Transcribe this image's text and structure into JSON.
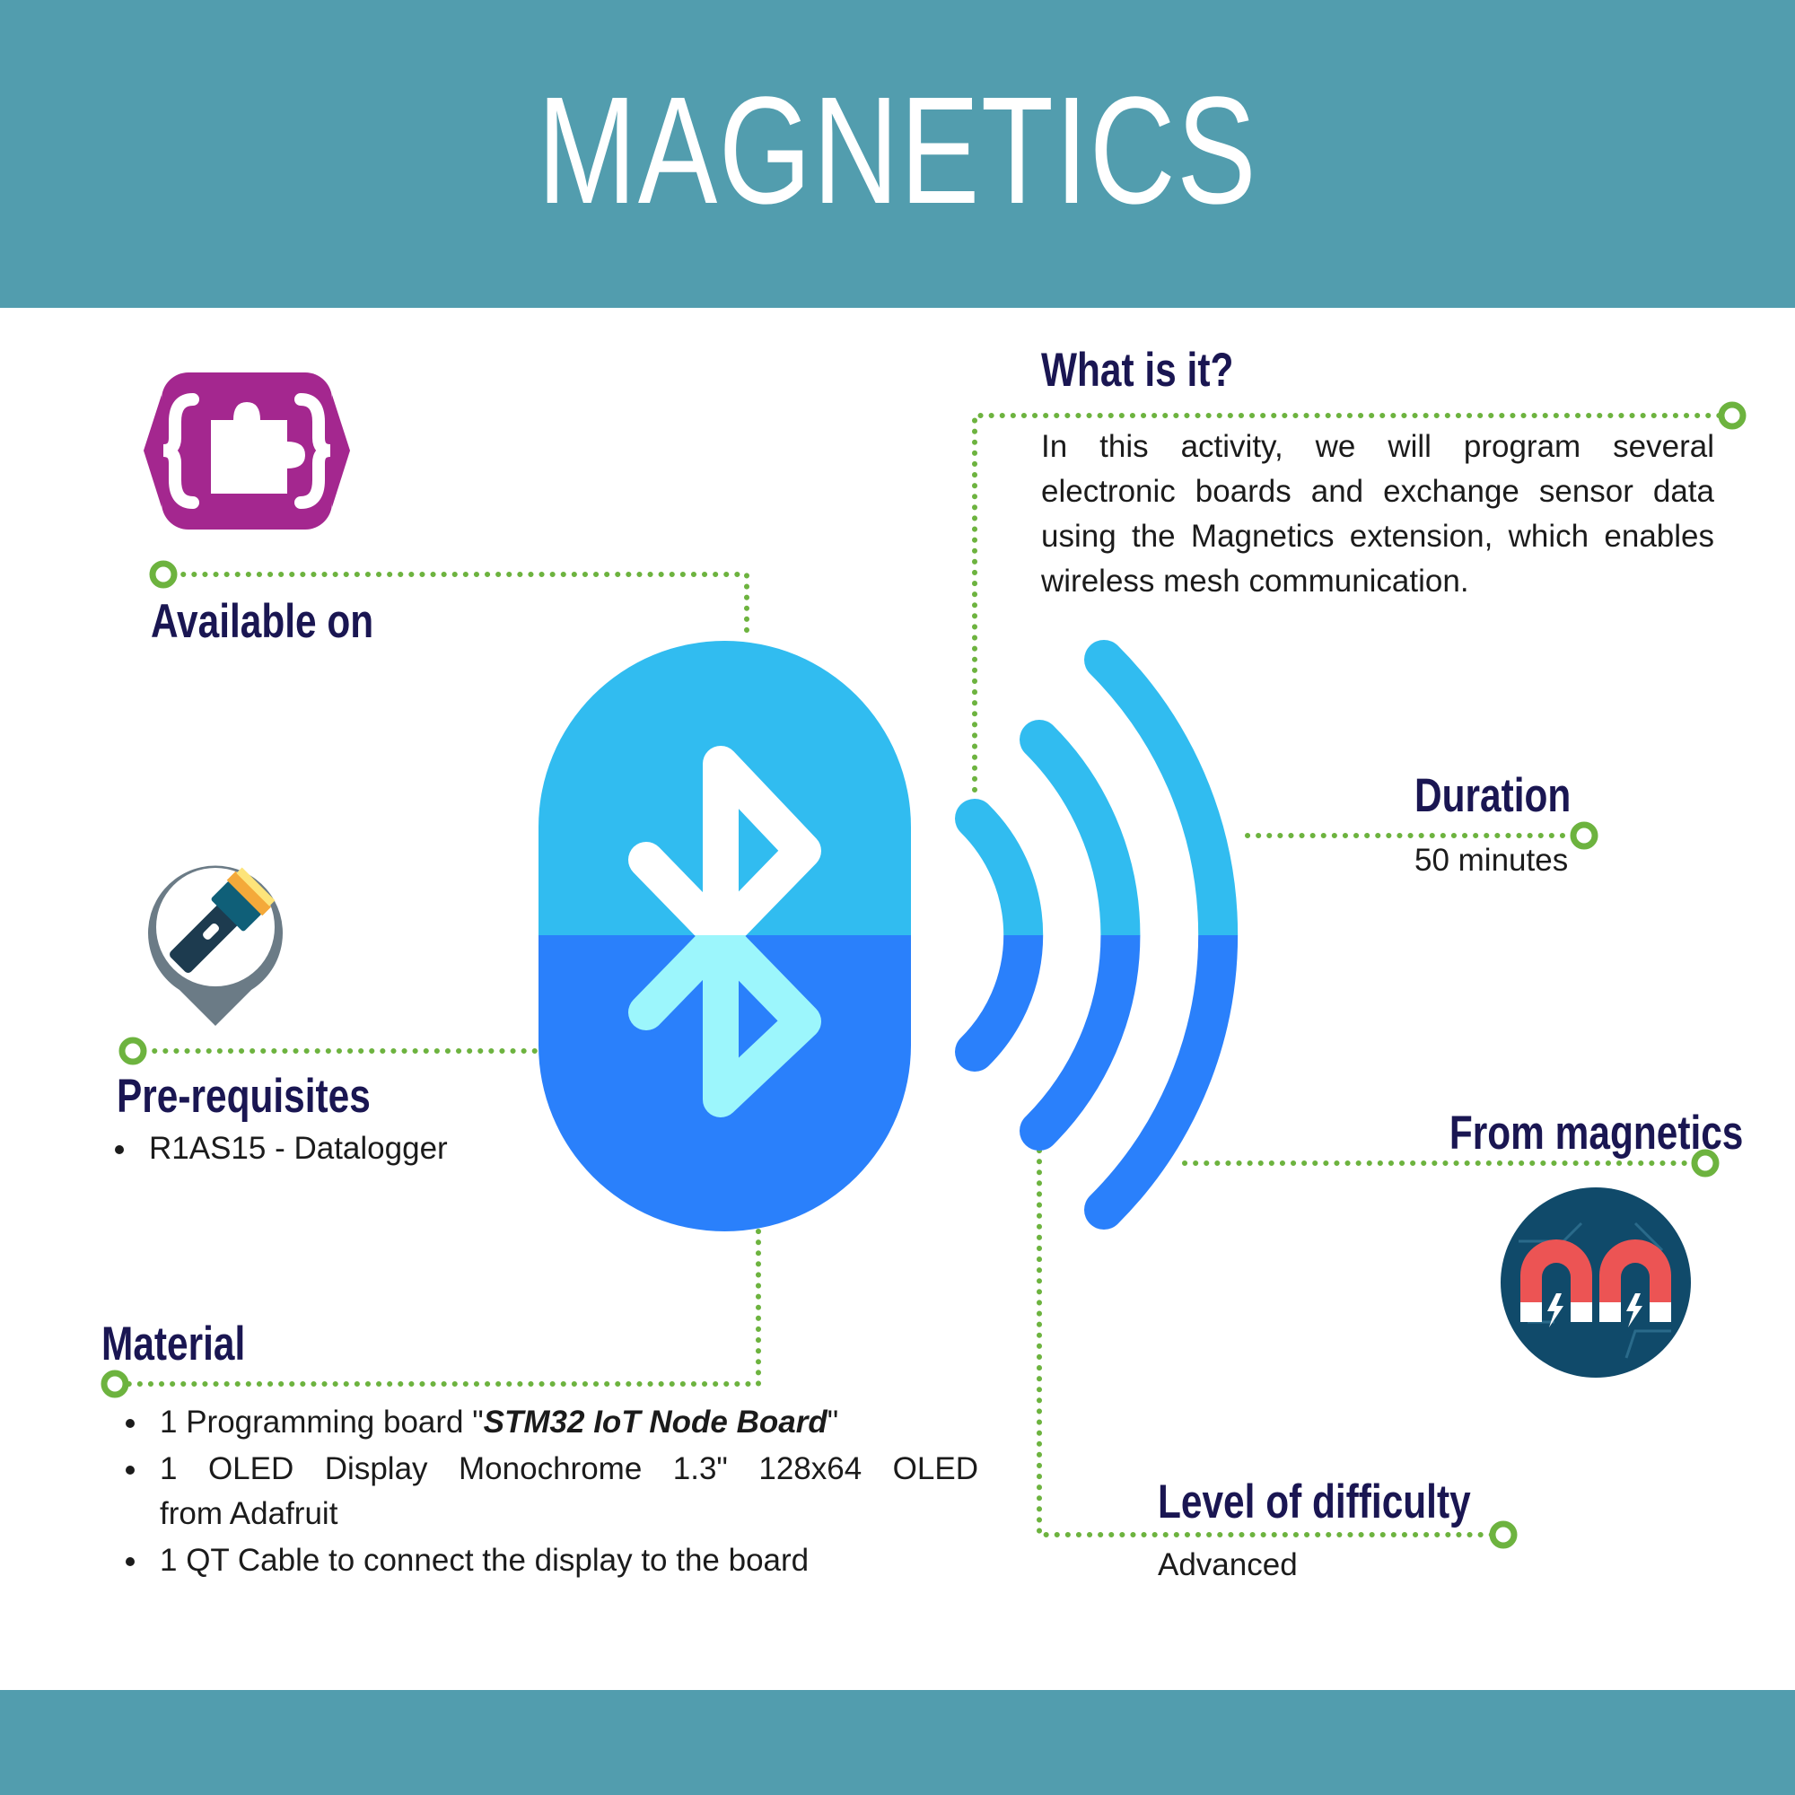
{
  "header": {
    "title": "MAGNETICS"
  },
  "what_is_it": {
    "heading": "What is it?",
    "text": "In this activity, we will program several electronic boards and exchange sensor data using the Magnetics extension, which enables wireless mesh communication."
  },
  "available_on": {
    "heading": "Available on"
  },
  "duration": {
    "heading": "Duration",
    "value": "50 minutes"
  },
  "prerequisites": {
    "heading": "Pre-requisites",
    "items": [
      "R1AS15 - Datalogger"
    ]
  },
  "from_magnetics": {
    "heading": "From magnetics"
  },
  "material": {
    "heading": "Material",
    "items": [
      {
        "before": "1 Programming board \"",
        "bold_italic": "STM32 IoT Node Board",
        "after": "\""
      },
      {
        "text": "1 OLED Display Monochrome 1.3\" 128x64 OLED",
        "text_cont": "from Adafruit"
      },
      {
        "text": "1 QT Cable to connect the display to the board"
      }
    ]
  },
  "difficulty": {
    "heading": "Level of difficulty",
    "value": "Advanced"
  },
  "icons": {
    "central": "bluetooth-icon",
    "signal": "signal-waves-icon",
    "makecode": "puzzle-braces-icon",
    "prereq": "flashlight-pin-icon",
    "magnet": "magnet-icon"
  },
  "colors": {
    "banner": "#529dae",
    "heading": "#1a1652",
    "connector": "#6db33f",
    "bt_light": "#31bcf0",
    "bt_dark": "#2a80fb",
    "bt_symbol_bottom": "#9cf6fc",
    "makecode": "#a4278f",
    "magnet_bg": "#104a6a",
    "magnet_red": "#ec5454"
  }
}
